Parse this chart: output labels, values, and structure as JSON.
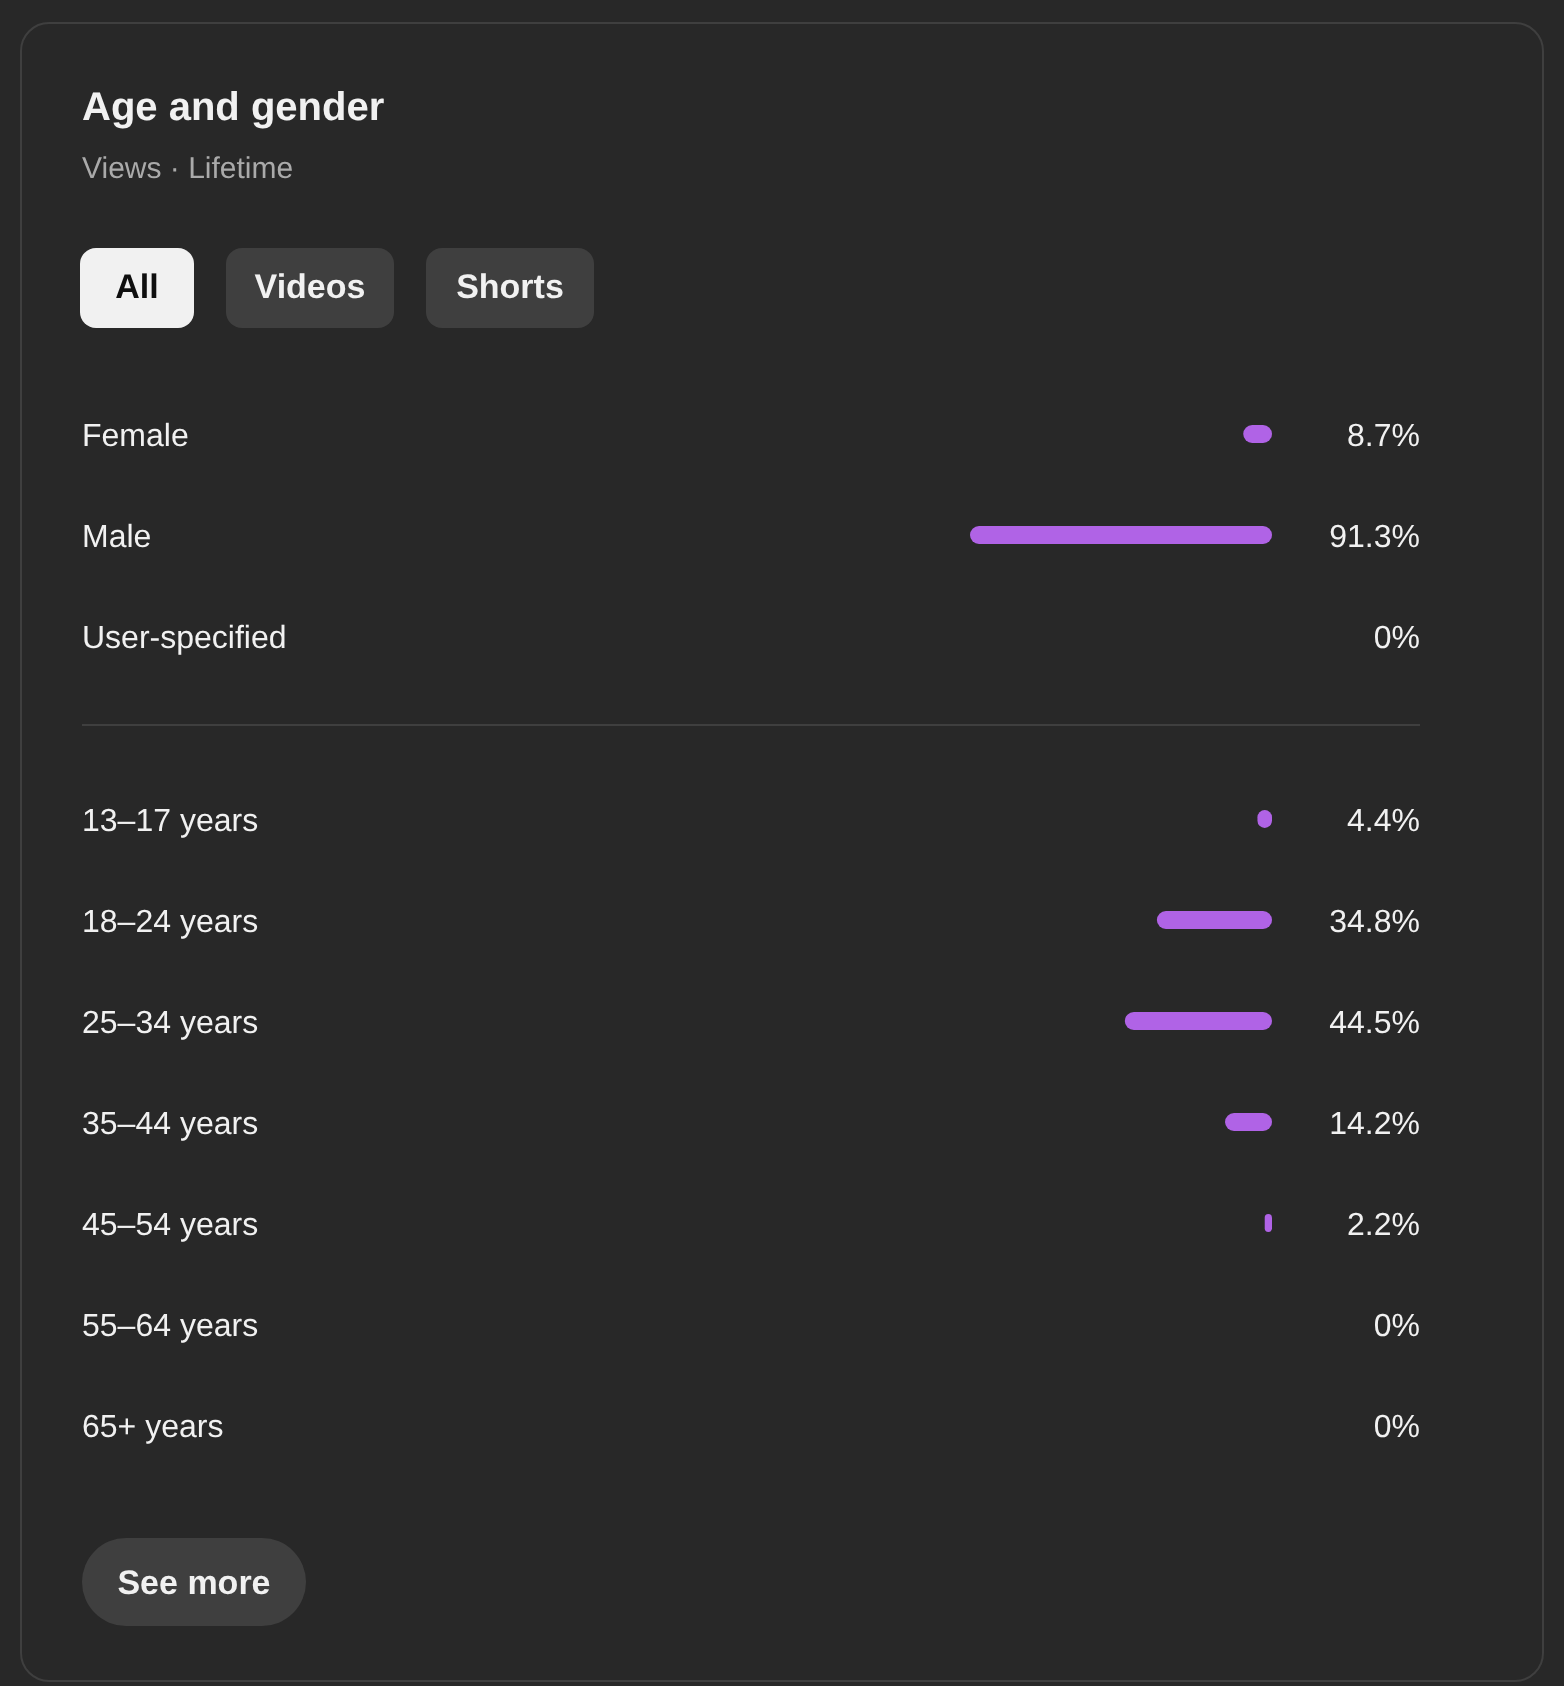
{
  "chart_data": [
    {
      "type": "bar",
      "orientation": "horizontal",
      "title": "Age and gender",
      "subtitle": "Views · Lifetime",
      "annotations": [
        "All",
        "Videos",
        "Shorts"
      ],
      "categories": [
        "Female",
        "Male",
        "User-specified"
      ],
      "values": [
        8.7,
        91.3,
        0
      ],
      "value_labels": [
        "8.7%",
        "91.3%",
        "0%"
      ],
      "color": "#b063e6"
    },
    {
      "type": "bar",
      "orientation": "horizontal",
      "annotations": [
        "See more"
      ],
      "categories": [
        "13–17 years",
        "18–24 years",
        "25–34 years",
        "35–44 years",
        "45–54 years",
        "55–64 years",
        "65+ years"
      ],
      "values": [
        4.4,
        34.8,
        44.5,
        14.2,
        2.2,
        0,
        0
      ],
      "value_labels": [
        "4.4%",
        "34.8%",
        "44.5%",
        "14.2%",
        "2.2%",
        "0%",
        "0%"
      ],
      "color": "#b063e6"
    }
  ]
}
